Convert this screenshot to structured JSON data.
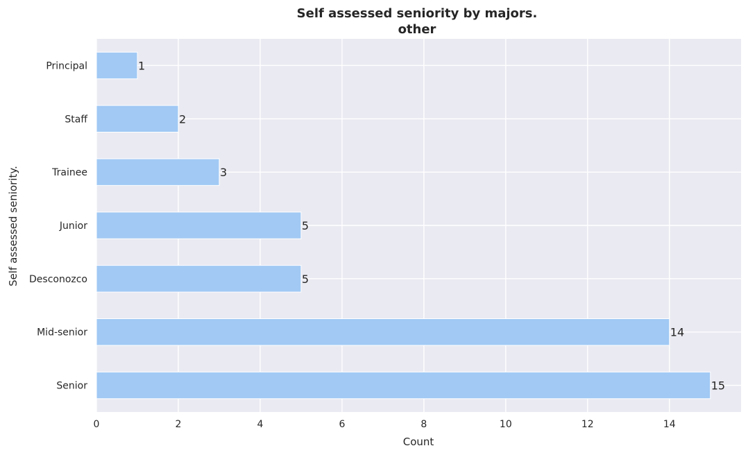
{
  "chart_data": {
    "type": "bar",
    "orientation": "horizontal",
    "title": "Self assessed seniority by majors.",
    "subtitle": "other",
    "xlabel": "Count",
    "ylabel": "Self assessed seniority.",
    "categories": [
      "Principal",
      "Staff",
      "Trainee",
      "Junior",
      "Desconozco",
      "Mid-senior",
      "Senior"
    ],
    "values": [
      1,
      2,
      3,
      5,
      5,
      14,
      15
    ],
    "data_labels": [
      "1",
      "2",
      "3",
      "5",
      "5",
      "14",
      "15"
    ],
    "xlim": [
      0,
      15.75
    ],
    "xticks": [
      0,
      2,
      4,
      6,
      8,
      10,
      12,
      14
    ],
    "xtick_labels": [
      "0",
      "2",
      "4",
      "6",
      "8",
      "10",
      "12",
      "14"
    ],
    "grid": true,
    "legend": "none",
    "colors": {
      "bar": "#a1c9f4",
      "background": "#eaeaf2",
      "grid": "#ffffff",
      "text": "#262626"
    }
  }
}
